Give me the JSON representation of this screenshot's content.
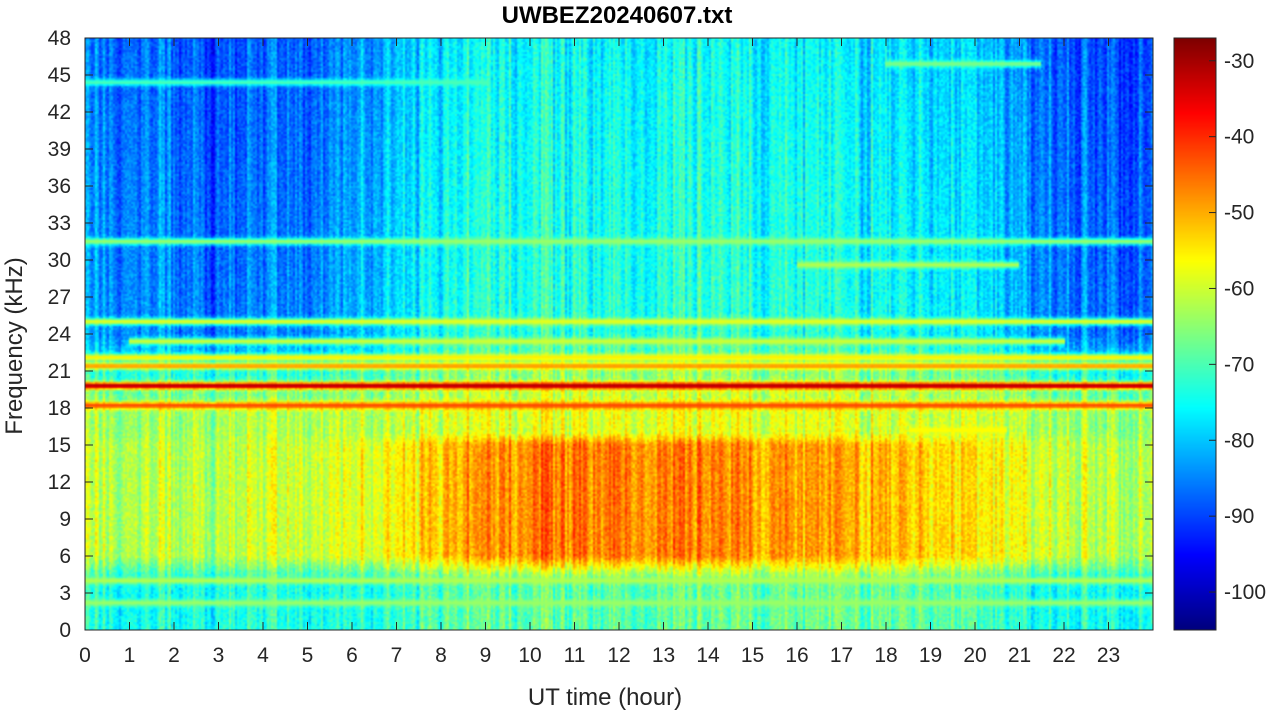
{
  "chart_data": {
    "type": "heatmap",
    "title": "UWBEZ20240607.txt",
    "xlabel": "UT time (hour)",
    "ylabel": "Frequency (kHz)",
    "xlim": [
      0,
      24
    ],
    "ylim": [
      0,
      48
    ],
    "x_ticks": [
      0,
      1,
      2,
      3,
      4,
      5,
      6,
      7,
      8,
      9,
      10,
      11,
      12,
      13,
      14,
      15,
      16,
      17,
      18,
      19,
      20,
      21,
      22,
      23
    ],
    "y_ticks": [
      0,
      3,
      6,
      9,
      12,
      15,
      18,
      21,
      24,
      27,
      30,
      33,
      36,
      39,
      42,
      45,
      48
    ],
    "colorbar": {
      "colormap": "jet",
      "clim": [
        -105,
        -27
      ],
      "ticks": [
        -30,
        -40,
        -50,
        -60,
        -70,
        -80,
        -90,
        -100
      ]
    },
    "background_level_dB": {
      "hours": [
        0,
        1,
        2,
        3,
        4,
        5,
        6,
        7,
        8,
        9,
        10,
        11,
        12,
        13,
        14,
        15,
        16,
        17,
        18,
        19,
        20,
        21,
        22,
        23,
        24
      ],
      "low_band_0_4kHz": [
        -74,
        -74,
        -74,
        -74,
        -74,
        -74,
        -74,
        -72,
        -70,
        -69,
        -68,
        -68,
        -68,
        -68,
        -68,
        -68,
        -68,
        -68,
        -68,
        -69,
        -71,
        -74,
        -74,
        -74,
        -74
      ],
      "mid_band_6_15kHz": [
        -62,
        -61,
        -61,
        -62,
        -61,
        -60,
        -59,
        -56,
        -52,
        -49,
        -46,
        -45,
        -45,
        -46,
        -47,
        -48,
        -49,
        -50,
        -51,
        -53,
        -56,
        -58,
        -60,
        -61,
        -62
      ],
      "band_16_18kHz": [
        -64,
        -63,
        -63,
        -63,
        -63,
        -62,
        -62,
        -61,
        -60,
        -59,
        -58,
        -57,
        -57,
        -57,
        -58,
        -58,
        -59,
        -59,
        -60,
        -60,
        -61,
        -62,
        -63,
        -64,
        -64
      ],
      "upper_band_24_48kHz": [
        -84,
        -83,
        -84,
        -87,
        -86,
        -85,
        -82,
        -78,
        -75,
        -73,
        -72,
        -72,
        -72,
        -72,
        -72,
        -73,
        -73,
        -74,
        -75,
        -76,
        -78,
        -82,
        -85,
        -86,
        -87
      ]
    },
    "transmitter_lines": [
      {
        "freq_kHz": 19.8,
        "level_dB": -30,
        "from_hour": 0,
        "to_hour": 24
      },
      {
        "freq_kHz": 18.2,
        "level_dB": -42,
        "from_hour": 0,
        "to_hour": 24
      },
      {
        "freq_kHz": 21.4,
        "level_dB": -48,
        "from_hour": 0,
        "to_hour": 24
      },
      {
        "freq_kHz": 22.1,
        "level_dB": -55,
        "from_hour": 0,
        "to_hour": 24
      },
      {
        "freq_kHz": 25.0,
        "level_dB": -58,
        "from_hour": 0,
        "to_hour": 24
      },
      {
        "freq_kHz": 23.4,
        "level_dB": -60,
        "from_hour": 1,
        "to_hour": 22
      },
      {
        "freq_kHz": 31.5,
        "level_dB": -64,
        "from_hour": 0,
        "to_hour": 24
      },
      {
        "freq_kHz": 44.4,
        "level_dB": -70,
        "from_hour": 0,
        "to_hour": 9.1
      },
      {
        "freq_kHz": 4.0,
        "level_dB": -62,
        "from_hour": 0,
        "to_hour": 24
      },
      {
        "freq_kHz": 2.2,
        "level_dB": -64,
        "from_hour": 0,
        "to_hour": 24
      },
      {
        "freq_kHz": 16.2,
        "level_dB": -56,
        "from_hour": 18.5,
        "to_hour": 20.7
      },
      {
        "freq_kHz": 29.6,
        "level_dB": -62,
        "from_hour": 16,
        "to_hour": 21
      },
      {
        "freq_kHz": 45.9,
        "level_dB": -66,
        "from_hour": 18,
        "to_hour": 21.5
      }
    ]
  },
  "colors": {
    "background": "#ffffff",
    "axes_text": "#262626"
  }
}
